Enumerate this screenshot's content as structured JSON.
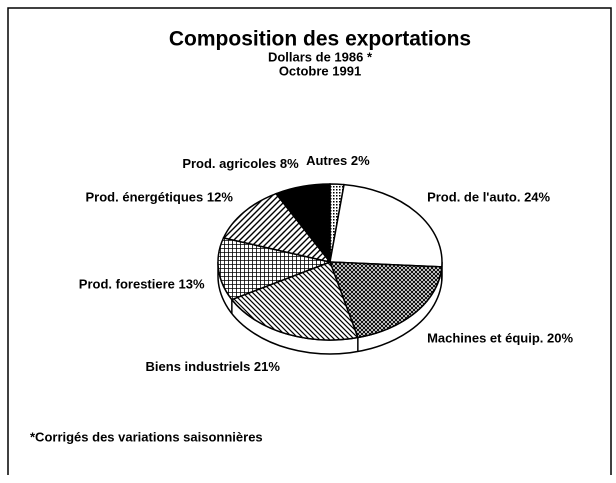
{
  "chart_data": {
    "type": "pie",
    "title": "Composition des exportations",
    "subtitle": [
      "Dollars de 1986 *",
      "Octobre 1991"
    ],
    "categories": [
      "Autres",
      "Prod. de l'auto.",
      "Machines et équip.",
      "Biens industriels",
      "Prod. forestiere",
      "Prod. énergétiques",
      "Prod. agricoles"
    ],
    "values": [
      2,
      24,
      20,
      21,
      13,
      12,
      8
    ],
    "value_labels": [
      "2%",
      "24%",
      "20%",
      "21%",
      "13%",
      "12%",
      "8%"
    ],
    "colors": [
      "url(#p-vdots)",
      "#ffffff",
      "url(#p-cross)",
      "url(#p-diag)",
      "url(#p-grid)",
      "url(#p-hatch)",
      "#000000"
    ],
    "footnote": "*Corrigés des variations saisonnières"
  }
}
